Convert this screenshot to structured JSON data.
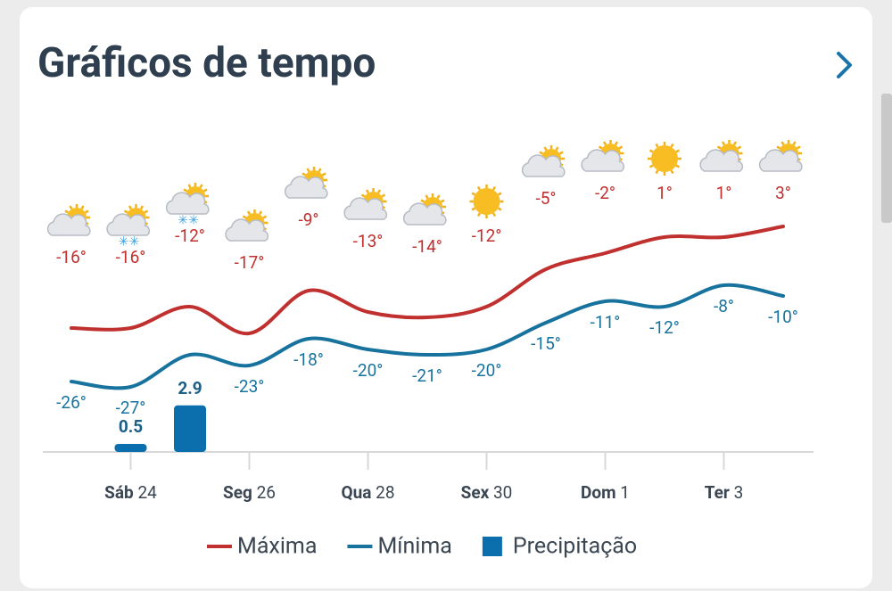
{
  "chart_data": {
    "type": "line",
    "title": "Gráficos de tempo",
    "categories": [
      null,
      {
        "day": "Sáb",
        "date": "24"
      },
      null,
      {
        "day": "Seg",
        "date": "26"
      },
      null,
      {
        "day": "Qua",
        "date": "28"
      },
      null,
      {
        "day": "Sex",
        "date": "30"
      },
      null,
      {
        "day": "Dom",
        "date": "1"
      },
      null,
      {
        "day": "Ter",
        "date": "3"
      },
      null
    ],
    "series": [
      {
        "name": "Máxima",
        "color": "#c0302f",
        "values": [
          -16,
          -16,
          -12,
          -17,
          -9,
          -13,
          -14,
          -12,
          -5,
          -2,
          1,
          1,
          3
        ],
        "value_labels": [
          "-16°",
          "-16°",
          "-12°",
          "-17°",
          "-9°",
          "-13°",
          "-14°",
          "-12°",
          "-5°",
          "-2°",
          "1°",
          "1°",
          "3°"
        ]
      },
      {
        "name": "Mínima",
        "color": "#17739e",
        "values": [
          -26,
          -27,
          -21,
          -23,
          -18,
          -20,
          -21,
          -20,
          -15,
          -11,
          -12,
          -8,
          -10
        ],
        "value_labels": [
          "-26°",
          "-27°",
          null,
          "-23°",
          "-18°",
          "-20°",
          "-21°",
          "-20°",
          "-15°",
          "-11°",
          "-12°",
          "-8°",
          "-10°"
        ]
      },
      {
        "name": "Precipitação",
        "color": "#0b6fae",
        "type": "bar",
        "values": [
          null,
          0.5,
          2.9,
          null,
          null,
          null,
          null,
          null,
          null,
          null,
          null,
          null,
          null
        ]
      }
    ]
  }
}
